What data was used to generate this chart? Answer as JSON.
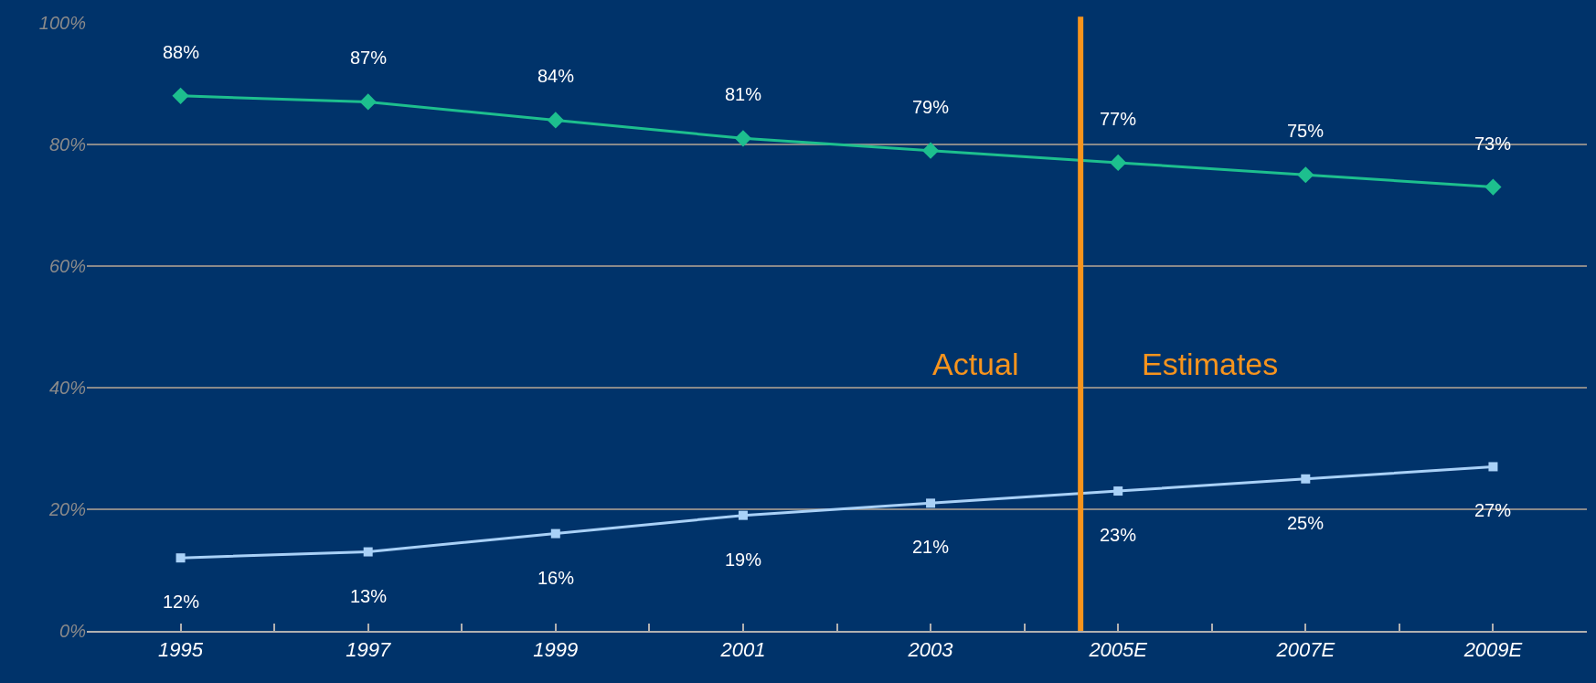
{
  "chart_data": {
    "type": "line",
    "x": [
      1995,
      1997,
      1999,
      2001,
      2003,
      2005,
      2007,
      2009
    ],
    "series": [
      {
        "color": "#1dbf8e",
        "marker": "diamond",
        "values": [
          88,
          87,
          84,
          81,
          79,
          77,
          75,
          73
        ],
        "value_labels": [
          "88%",
          "87%",
          "84%",
          "81%",
          "79%",
          "77%",
          "75%",
          "73%"
        ]
      },
      {
        "color": "#a9d1f7",
        "marker": "square",
        "values": [
          12,
          13,
          16,
          19,
          21,
          23,
          25,
          27
        ],
        "value_labels": [
          "12%",
          "13%",
          "16%",
          "19%",
          "21%",
          "23%",
          "25%",
          "27%"
        ]
      }
    ],
    "xlim": [
      1994,
      2010
    ],
    "xticks": [
      {
        "value": 1995,
        "label": "1995"
      },
      {
        "value": 1996,
        "label": null
      },
      {
        "value": 1997,
        "label": "1997"
      },
      {
        "value": 1998,
        "label": null
      },
      {
        "value": 1999,
        "label": "1999"
      },
      {
        "value": 2000,
        "label": null
      },
      {
        "value": 2001,
        "label": "2001"
      },
      {
        "value": 2002,
        "label": null
      },
      {
        "value": 2003,
        "label": "2003"
      },
      {
        "value": 2004,
        "label": null
      },
      {
        "value": 2005,
        "label": "2005E"
      },
      {
        "value": 2006,
        "label": null
      },
      {
        "value": 2007,
        "label": "2007E"
      },
      {
        "value": 2008,
        "label": null
      },
      {
        "value": 2009,
        "label": "2009E"
      }
    ],
    "ylim": [
      0,
      100
    ],
    "yticks": [
      {
        "value": 0,
        "label": "0%"
      },
      {
        "value": 20,
        "label": "20%"
      },
      {
        "value": 40,
        "label": "40%"
      },
      {
        "value": 60,
        "label": "60%"
      },
      {
        "value": 80,
        "label": "80%"
      },
      {
        "value": 100,
        "label": "100%"
      }
    ],
    "grid": "y",
    "ref_lines": [
      {
        "axis": "x",
        "value": 2004.6,
        "color": "#f7941d"
      }
    ],
    "annotations": [
      "Actual",
      "Estimates"
    ]
  }
}
